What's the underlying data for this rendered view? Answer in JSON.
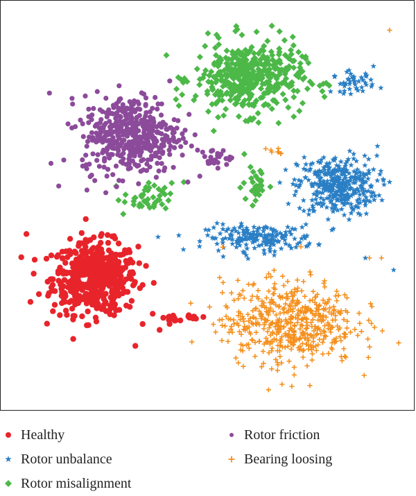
{
  "chart_data": {
    "type": "scatter",
    "title": "",
    "xlabel": "",
    "ylabel": "",
    "xlim": [
      0,
      100
    ],
    "ylim": [
      0,
      100
    ],
    "grid": false,
    "axes_ticks": false,
    "legend_position": "bottom",
    "series": [
      {
        "name": "Healthy",
        "marker": "circle",
        "color": "#e8242b",
        "clusters": [
          {
            "center": [
              22,
              32
            ],
            "spread": [
              7,
              6
            ],
            "n": 520
          },
          {
            "center": [
              41,
              22
            ],
            "spread": [
              1.2,
              0.5
            ],
            "n": 12
          },
          {
            "center": [
              46,
              22
            ],
            "spread": [
              1.2,
              0.4
            ],
            "n": 10
          }
        ],
        "outliers": [
          [
            6,
            26
          ],
          [
            5,
            43
          ],
          [
            32,
            15
          ],
          [
            38,
            19
          ]
        ]
      },
      {
        "name": "Rotor unbalance",
        "marker": "star",
        "color": "#2a7fc5",
        "clusters": [
          {
            "center": [
              82,
              55
            ],
            "spread": [
              6.5,
              5
            ],
            "n": 360
          },
          {
            "center": [
              63,
              42
            ],
            "spread": [
              9,
              2.2
            ],
            "n": 180
          },
          {
            "center": [
              86,
              81
            ],
            "spread": [
              3.5,
              1.8
            ],
            "n": 45
          }
        ],
        "outliers": [
          [
            96,
            34
          ],
          [
            92,
            65
          ],
          [
            91,
            85
          ],
          [
            89,
            37
          ],
          [
            95,
            56
          ]
        ]
      },
      {
        "name": "Rotor misalignment",
        "marker": "diamond",
        "color": "#4cb848",
        "clusters": [
          {
            "center": [
              60,
              82
            ],
            "spread": [
              9,
              6
            ],
            "n": 420
          },
          {
            "center": [
              35,
              52
            ],
            "spread": [
              4,
              2.5
            ],
            "n": 40
          },
          {
            "center": [
              62,
              55
            ],
            "spread": [
              2.2,
              3
            ],
            "n": 30
          }
        ],
        "outliers": [
          [
            57,
            95
          ],
          [
            59,
            63
          ],
          [
            44,
            56
          ],
          [
            29,
            48
          ]
        ]
      },
      {
        "name": "Rotor friction",
        "marker": "circle-small",
        "color": "#8c4b9a",
        "clusters": [
          {
            "center": [
              31,
              68
            ],
            "spread": [
              8,
              6.5
            ],
            "n": 460
          },
          {
            "center": [
              52,
              62
            ],
            "spread": [
              2.5,
              1.5
            ],
            "n": 25
          }
        ],
        "outliers": [
          [
            13,
            55
          ],
          [
            45,
            56
          ],
          [
            20,
            54
          ]
        ]
      },
      {
        "name": "Bearing loosing",
        "marker": "plus",
        "color": "#f5901e",
        "clusters": [
          {
            "center": [
              70,
              21
            ],
            "spread": [
              11,
              7
            ],
            "n": 520
          },
          {
            "center": [
              67,
              64
            ],
            "spread": [
              1.5,
              0.8
            ],
            "n": 8
          }
        ],
        "outliers": [
          [
            95,
            94
          ],
          [
            65,
            4
          ],
          [
            46,
            16
          ],
          [
            90,
            37
          ],
          [
            93,
            37
          ]
        ]
      }
    ]
  },
  "legend": {
    "items": [
      {
        "label": "Healthy",
        "color": "#e8242b",
        "marker": "circle"
      },
      {
        "label": "Rotor unbalance",
        "color": "#2a7fc5",
        "marker": "star"
      },
      {
        "label": "Rotor misalignment",
        "color": "#4cb848",
        "marker": "diamond"
      },
      {
        "label": "Rotor friction",
        "color": "#8c4b9a",
        "marker": "circle-small"
      },
      {
        "label": "Bearing loosing",
        "color": "#f5901e",
        "marker": "plus"
      }
    ]
  }
}
